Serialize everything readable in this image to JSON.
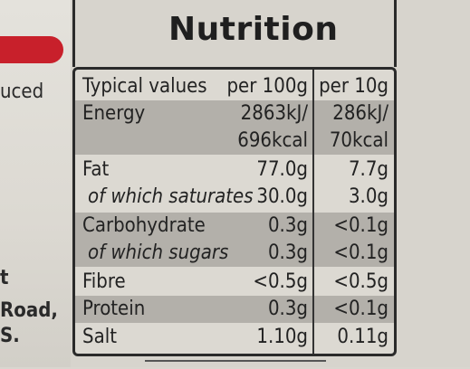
{
  "left_text": [
    "uced",
    "t",
    "Road,",
    "S."
  ],
  "title": "Nutrition",
  "header": {
    "label": "Typical values",
    "col1": "per 100g",
    "col2": "per 10g"
  },
  "rows": [
    {
      "label": "Energy",
      "v1": "2863kJ/",
      "v2": "286kJ/"
    },
    {
      "label": "",
      "v1": "696kcal",
      "v2": "70kcal"
    },
    {
      "label": "Fat",
      "v1": "77.0g",
      "v2": "7.7g"
    },
    {
      "label": "of which saturates",
      "v1": "30.0g",
      "v2": "3.0g"
    },
    {
      "label": "Carbohydrate",
      "v1": "0.3g",
      "v2": "<0.1g"
    },
    {
      "label": "of which sugars",
      "v1": "0.3g",
      "v2": "<0.1g"
    },
    {
      "label": "Fibre",
      "v1": "<0.5g",
      "v2": "<0.5g"
    },
    {
      "label": "Protein",
      "v1": "0.3g",
      "v2": "<0.1g"
    },
    {
      "label": "Salt",
      "v1": "1.10g",
      "v2": "0.11g"
    }
  ],
  "colors": {
    "accent_red": "#c8202b",
    "shade": "#b3b0aa",
    "ink": "#222222"
  }
}
